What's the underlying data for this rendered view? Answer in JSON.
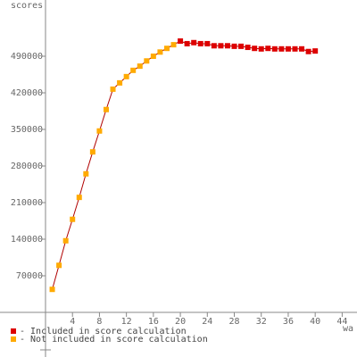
{
  "chart_data": {
    "type": "line",
    "y_label": "scores",
    "x_label": "wa",
    "xlim": [
      -6.75,
      46.2
    ],
    "ylim": [
      -85366,
      597560
    ],
    "xticks": [
      4,
      8,
      12,
      16,
      20,
      24,
      28,
      32,
      36,
      40,
      44
    ],
    "yticks": [
      70000,
      140000,
      210000,
      280000,
      350000,
      420000,
      490000
    ],
    "line_color": "#b00000",
    "series": [
      {
        "name": "- Included in score calculation",
        "color": "#dd0000",
        "x": [
          20,
          21,
          22,
          23,
          24,
          25,
          26,
          27,
          28,
          29,
          30,
          31,
          32,
          33,
          34,
          35,
          36,
          37,
          38,
          39,
          40
        ],
        "values": [
          519000,
          514000,
          516000,
          514000,
          514000,
          510000,
          510000,
          510000,
          509000,
          509000,
          507000,
          505000,
          504000,
          505000,
          504000,
          504000,
          504000,
          504000,
          504000,
          499000,
          500000
        ]
      },
      {
        "name": "- Not included in score calculation",
        "color": "#ffaa00",
        "x": [
          1,
          2,
          3,
          4,
          5,
          6,
          7,
          8,
          9,
          10,
          11,
          12,
          13,
          14,
          15,
          16,
          17,
          18,
          19
        ],
        "values": [
          44000,
          90000,
          137000,
          178000,
          220000,
          265000,
          307000,
          347000,
          388000,
          427000,
          439000,
          451000,
          463000,
          471000,
          481000,
          490000,
          498000,
          505000,
          512000
        ]
      }
    ]
  }
}
